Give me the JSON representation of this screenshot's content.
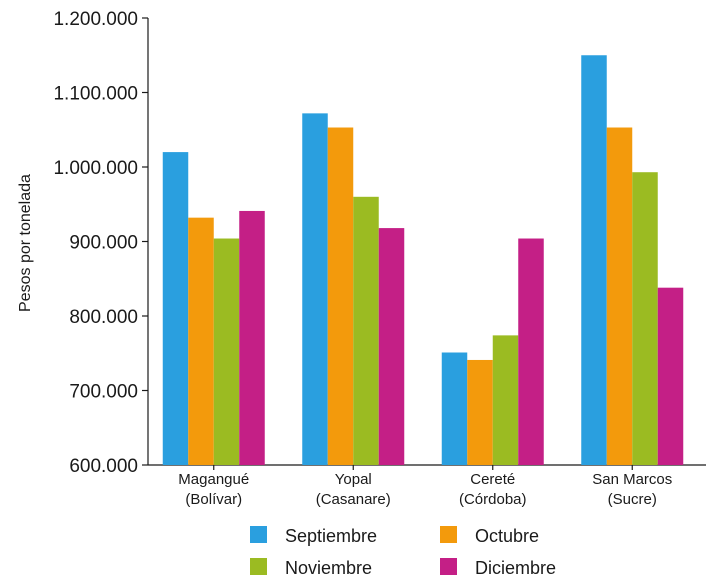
{
  "chart_data": {
    "type": "bar",
    "ylabel": "Pesos por tonelada",
    "xlabel": "",
    "ylim": [
      600000,
      1200000
    ],
    "yticks": [
      600000,
      700000,
      800000,
      900000,
      1000000,
      1100000,
      1200000
    ],
    "ytick_labels": [
      "600.000",
      "700.000",
      "800.000",
      "900.000",
      "1.000.000",
      "1.100.000",
      "1.200.000"
    ],
    "categories": [
      [
        "Magangué",
        "(Bolívar)"
      ],
      [
        "Yopal",
        "(Casanare)"
      ],
      [
        "Cereté",
        "(Córdoba)"
      ],
      [
        "San Marcos",
        "(Sucre)"
      ]
    ],
    "series": [
      {
        "name": "Septiembre",
        "color": "#2a9fdf",
        "values": [
          1020000,
          1072000,
          751000,
          1150000
        ]
      },
      {
        "name": "Octubre",
        "color": "#f39a0c",
        "values": [
          932000,
          1053000,
          741000,
          1053000
        ]
      },
      {
        "name": "Noviembre",
        "color": "#9bbb22",
        "values": [
          904000,
          960000,
          774000,
          993000
        ]
      },
      {
        "name": "Diciembre",
        "color": "#c41f86",
        "values": [
          941000,
          918000,
          904000,
          838000
        ]
      }
    ],
    "legend": "bottom",
    "grid": false
  }
}
